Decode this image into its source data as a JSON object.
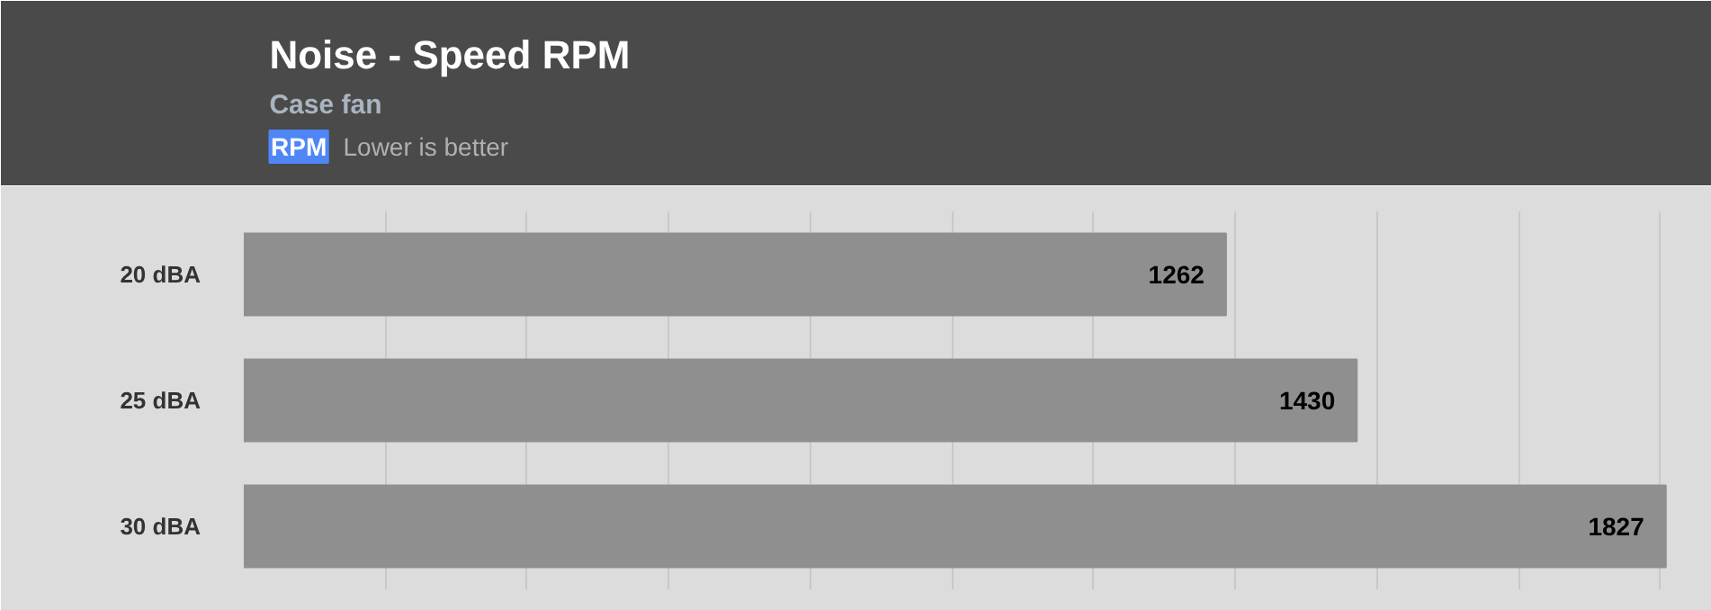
{
  "chart_data": {
    "type": "bar",
    "orientation": "horizontal",
    "title": "Noise - Speed RPM",
    "subtitle": "Case fan",
    "annotations": [
      "RPM",
      "Lower is better"
    ],
    "categories": [
      "20 dBA",
      "25 dBA",
      "30 dBA"
    ],
    "values": [
      1262,
      1430,
      1827
    ],
    "color": "#8f8f8f",
    "data_labels": true,
    "xlim": [
      0,
      1840
    ],
    "xticks": [
      {
        "value": 0,
        "label": null
      },
      {
        "value": 182,
        "label": null
      },
      {
        "value": 364,
        "label": null
      },
      {
        "value": 546,
        "label": null
      },
      {
        "value": 728,
        "label": null
      },
      {
        "value": 910,
        "label": null
      },
      {
        "value": 1092,
        "label": null
      },
      {
        "value": 1274,
        "label": null
      },
      {
        "value": 1456,
        "label": null
      },
      {
        "value": 1638,
        "label": null
      },
      {
        "value": 1820,
        "label": null
      }
    ],
    "grid": "x",
    "tick_labels": "y"
  }
}
